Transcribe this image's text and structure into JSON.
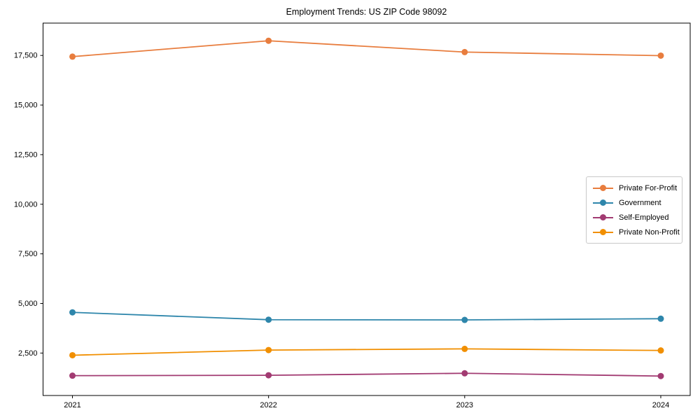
{
  "title": "Employment Trends: US ZIP Code 98092",
  "chart_data": {
    "type": "line",
    "title": "Employment Trends: US ZIP Code 98092",
    "xlabel": "",
    "ylabel": "",
    "categories": [
      "2021",
      "2022",
      "2023",
      "2024"
    ],
    "x": [
      2021,
      2022,
      2023,
      2024
    ],
    "series": [
      {
        "name": "Private For-Profit",
        "color": "#e87d3e",
        "values": [
          17440,
          18240,
          17670,
          17490
        ]
      },
      {
        "name": "Government",
        "color": "#2e86ab",
        "values": [
          4550,
          4180,
          4170,
          4230
        ]
      },
      {
        "name": "Self-Employed",
        "color": "#a23b72",
        "values": [
          1360,
          1380,
          1480,
          1340
        ]
      },
      {
        "name": "Private Non-Profit",
        "color": "#f18f01",
        "values": [
          2390,
          2650,
          2710,
          2630
        ]
      }
    ],
    "yticks": [
      2500,
      5000,
      7500,
      10000,
      12500,
      15000,
      17500
    ],
    "ylim": [
      360,
      19130
    ],
    "xlim": [
      2020.85,
      2024.15
    ],
    "grid": false,
    "legend_position": "center right",
    "marker": "circle",
    "axis_color": "#000000"
  }
}
